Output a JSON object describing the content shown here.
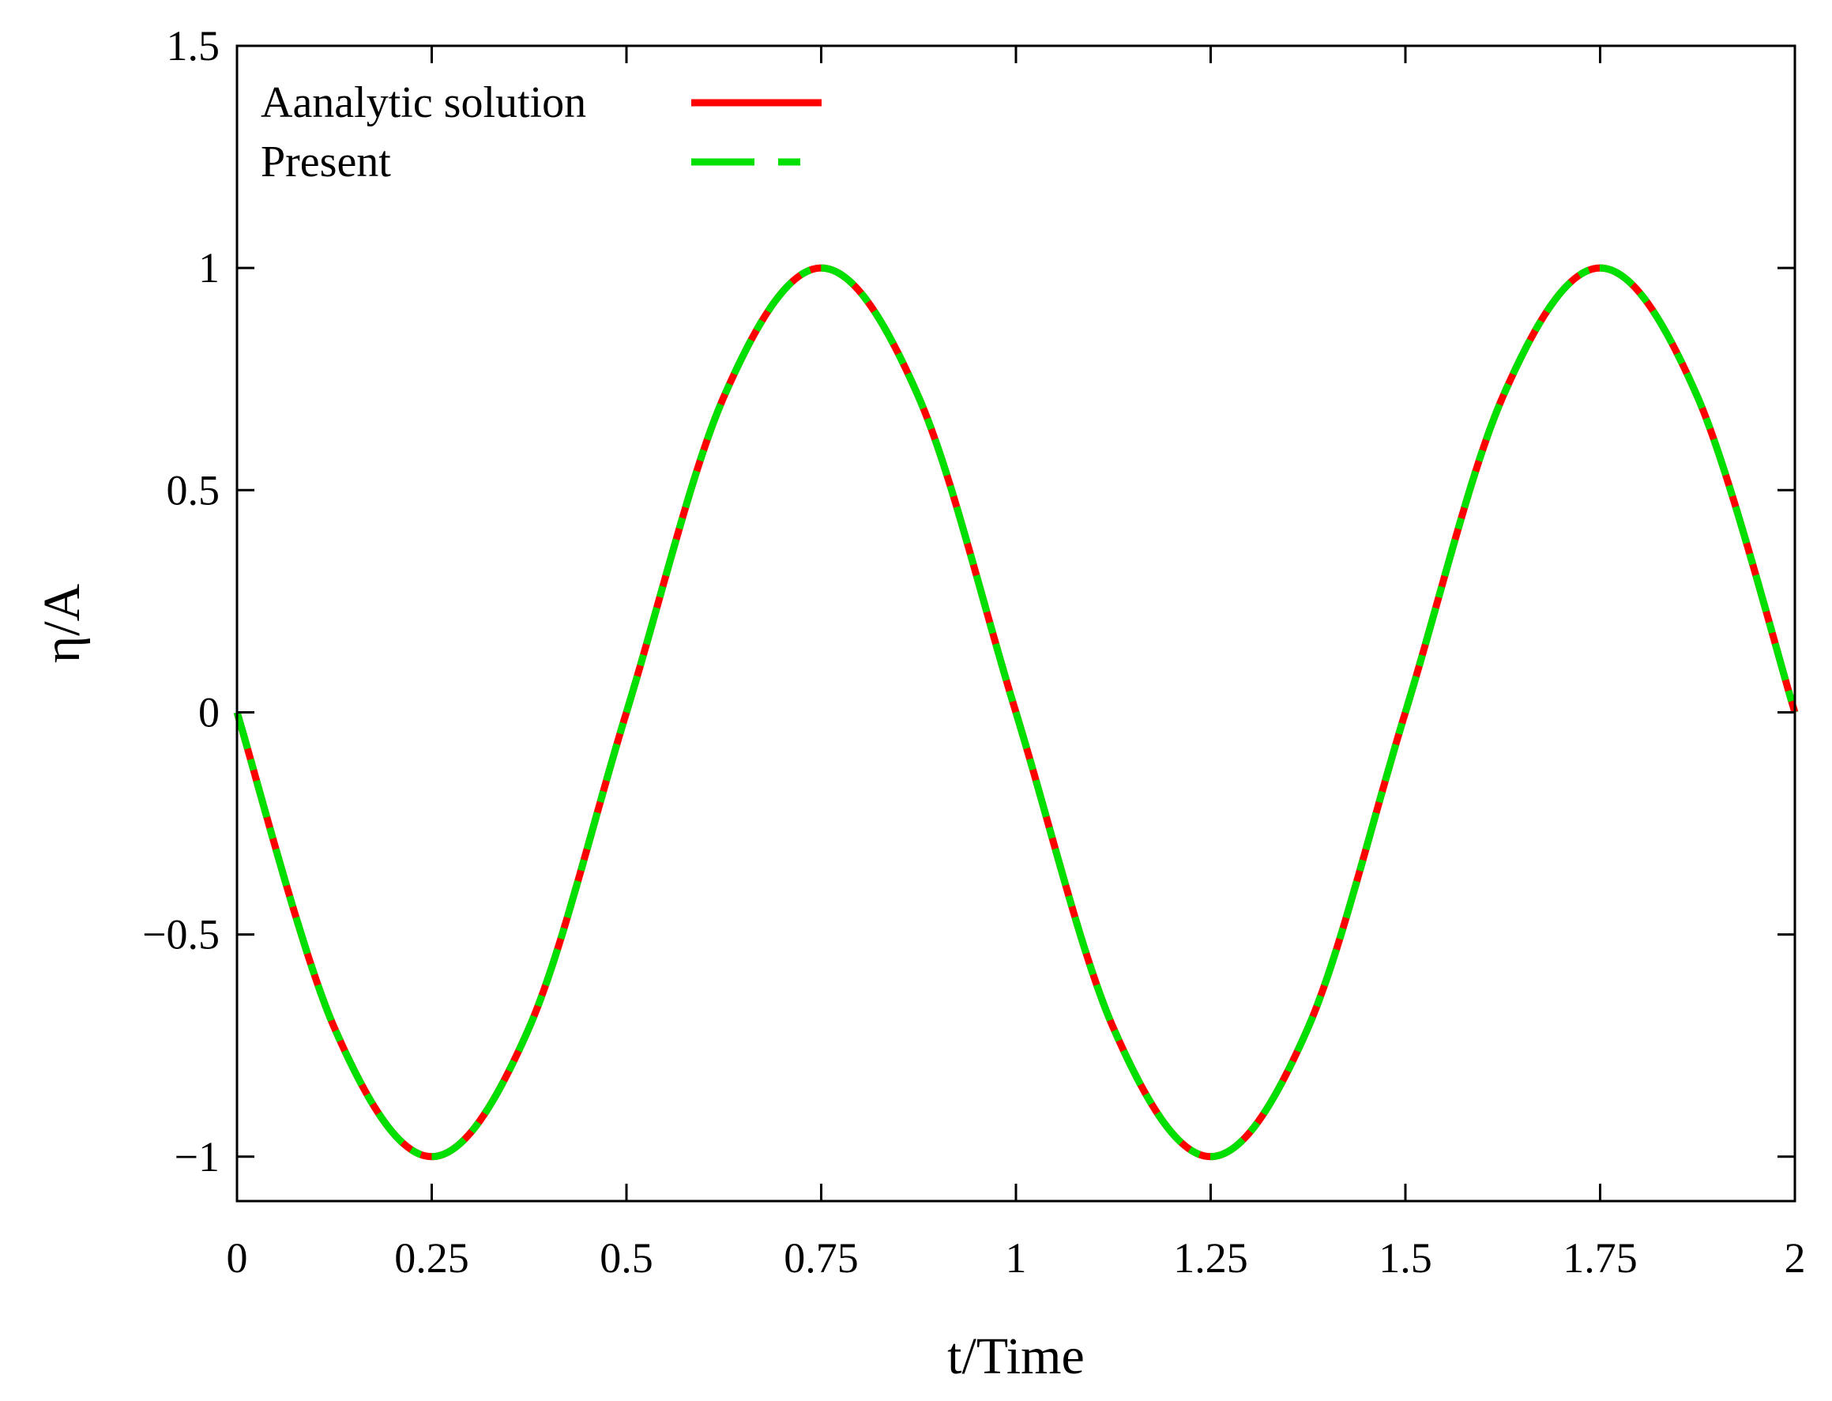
{
  "chart_data": {
    "type": "line",
    "title": "",
    "xlabel": "t/Time",
    "ylabel": "η/A",
    "xlim": [
      0,
      2
    ],
    "ylim": [
      -1.1,
      1.5
    ],
    "x_ticks": [
      0,
      0.25,
      0.5,
      0.75,
      1,
      1.25,
      1.5,
      1.75,
      2
    ],
    "x_tick_labels": [
      "0",
      "0.25",
      "0.5",
      "0.75",
      "1",
      "1.25",
      "1.5",
      "1.75",
      "2"
    ],
    "y_ticks": [
      -1,
      -0.5,
      0,
      0.5,
      1,
      1.5
    ],
    "y_tick_labels": [
      "−1",
      "−0.5",
      "0",
      "0.5",
      "1",
      "1.5"
    ],
    "grid": false,
    "legend_position": "top-left",
    "series": [
      {
        "name": "Aanalytic solution",
        "color": "#ff0000",
        "style": "solid",
        "x": [
          0,
          0.125,
          0.25,
          0.375,
          0.5,
          0.625,
          0.75,
          0.875,
          1,
          1.125,
          1.25,
          1.375,
          1.5,
          1.625,
          1.75,
          1.875,
          2
        ],
        "y": [
          0,
          -0.71,
          -1,
          -0.71,
          0,
          0.71,
          1,
          0.71,
          0,
          -0.71,
          -1,
          -0.71,
          0,
          0.71,
          1,
          0.71,
          0
        ]
      },
      {
        "name": "Present",
        "color": "#00e000",
        "style": "dashed",
        "x": [
          0,
          0.125,
          0.25,
          0.375,
          0.5,
          0.625,
          0.75,
          0.875,
          1,
          1.125,
          1.25,
          1.375,
          1.5,
          1.625,
          1.75,
          1.875,
          2
        ],
        "y": [
          0,
          -0.71,
          -1,
          -0.71,
          0,
          0.71,
          1,
          0.71,
          0,
          -0.71,
          -1,
          -0.71,
          0,
          0.71,
          1,
          0.71,
          0
        ]
      }
    ]
  }
}
